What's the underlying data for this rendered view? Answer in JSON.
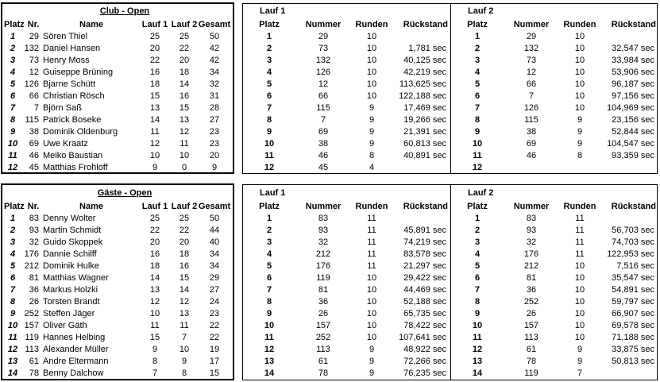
{
  "sections": [
    {
      "title": "Club - Open",
      "standings": {
        "columns": [
          "Platz",
          "Nr.",
          "Name",
          "Lauf 1",
          "Lauf 2",
          "Gesamt"
        ],
        "rows": [
          [
            "1",
            "29",
            "Sören Thiel",
            "25",
            "25",
            "50"
          ],
          [
            "2",
            "132",
            "Daniel Hansen",
            "20",
            "22",
            "42"
          ],
          [
            "3",
            "73",
            "Henry Moss",
            "22",
            "20",
            "42"
          ],
          [
            "4",
            "12",
            "Guiseppe Brüning",
            "16",
            "18",
            "34"
          ],
          [
            "5",
            "126",
            "Bjarne Schütt",
            "18",
            "14",
            "32"
          ],
          [
            "6",
            "66",
            "Christian Rösch",
            "15",
            "16",
            "31"
          ],
          [
            "7",
            "7",
            "Björn Saß",
            "13",
            "15",
            "28"
          ],
          [
            "8",
            "115",
            "Patrick Boseke",
            "14",
            "13",
            "27"
          ],
          [
            "9",
            "38",
            "Dominik Oldenburg",
            "11",
            "12",
            "23"
          ],
          [
            "10",
            "69",
            "Uwe Kraatz",
            "12",
            "11",
            "23"
          ],
          [
            "11",
            "46",
            "Meiko Baustian",
            "10",
            "10",
            "20"
          ],
          [
            "12",
            "45",
            "Matthias Frohloff",
            "9",
            "0",
            "9"
          ]
        ]
      },
      "runs": [
        {
          "title": "Lauf 1",
          "columns": [
            "Platz",
            "Nummer",
            "Runden",
            "Rückstand"
          ],
          "rows": [
            [
              "1",
              "29",
              "10"
            ],
            [
              "2",
              "73",
              "10",
              "1,781 sec"
            ],
            [
              "3",
              "132",
              "10",
              "40,125 sec"
            ],
            [
              "4",
              "126",
              "10",
              "42,219 sec"
            ],
            [
              "5",
              "12",
              "10",
              "113,625 sec"
            ],
            [
              "6",
              "66",
              "10",
              "122,188 sec"
            ],
            [
              "7",
              "115",
              "9",
              "17,469 sec"
            ],
            [
              "8",
              "7",
              "9",
              "19,266 sec"
            ],
            [
              "9",
              "69",
              "9",
              "21,391 sec"
            ],
            [
              "10",
              "38",
              "9",
              "60,813 sec"
            ],
            [
              "11",
              "46",
              "8",
              "40,891 sec"
            ],
            [
              "12",
              "45",
              "4"
            ]
          ]
        },
        {
          "title": "Lauf 2",
          "columns": [
            "Platz",
            "Nummer",
            "Runden",
            "Rückstand"
          ],
          "rows": [
            [
              "1",
              "29",
              "10"
            ],
            [
              "2",
              "132",
              "10",
              "32,547 sec"
            ],
            [
              "3",
              "73",
              "10",
              "33,984 sec"
            ],
            [
              "4",
              "12",
              "10",
              "53,906 sec"
            ],
            [
              "5",
              "66",
              "10",
              "96,187 sec"
            ],
            [
              "6",
              "7",
              "10",
              "97,156 sec"
            ],
            [
              "7",
              "126",
              "10",
              "104,969 sec"
            ],
            [
              "8",
              "115",
              "9",
              "23,156 sec"
            ],
            [
              "9",
              "38",
              "9",
              "52,844 sec"
            ],
            [
              "10",
              "69",
              "9",
              "104,547 sec"
            ],
            [
              "11",
              "46",
              "8",
              "93,359 sec"
            ],
            [
              "12"
            ]
          ]
        }
      ]
    },
    {
      "title": "Gäste - Open",
      "standings": {
        "columns": [
          "Platz",
          "Nr.",
          "Name",
          "Lauf 1",
          "Lauf 2",
          "Gesamt"
        ],
        "rows": [
          [
            "1",
            "83",
            "Denny Wolter",
            "25",
            "25",
            "50"
          ],
          [
            "2",
            "93",
            "Martin Schmidt",
            "22",
            "22",
            "44"
          ],
          [
            "3",
            "32",
            "Guido Skoppek",
            "20",
            "20",
            "40"
          ],
          [
            "4",
            "176",
            "Dannie Schilff",
            "16",
            "18",
            "34"
          ],
          [
            "5",
            "212",
            "Dominik Hulke",
            "18",
            "16",
            "34"
          ],
          [
            "6",
            "81",
            "Matthias Wagner",
            "14",
            "15",
            "29"
          ],
          [
            "7",
            "36",
            "Markus Holzki",
            "13",
            "14",
            "27"
          ],
          [
            "8",
            "26",
            "Torsten Brandt",
            "12",
            "12",
            "24"
          ],
          [
            "9",
            "252",
            "Steffen Jäger",
            "10",
            "13",
            "23"
          ],
          [
            "10",
            "157",
            "Oliver Gäth",
            "11",
            "11",
            "22"
          ],
          [
            "11",
            "119",
            "Hannes Helbing",
            "15",
            "7",
            "22"
          ],
          [
            "12",
            "113",
            "Alexander Müller",
            "9",
            "10",
            "19"
          ],
          [
            "13",
            "61",
            "Andre Eltermann",
            "8",
            "9",
            "17"
          ],
          [
            "14",
            "78",
            "Benny Dalchow",
            "7",
            "8",
            "15"
          ]
        ]
      },
      "runs": [
        {
          "title": "Lauf 1",
          "columns": [
            "Platz",
            "Nummer",
            "Runden",
            "Rückstand"
          ],
          "rows": [
            [
              "1",
              "83",
              "11"
            ],
            [
              "2",
              "93",
              "11",
              "45,891 sec"
            ],
            [
              "3",
              "32",
              "11",
              "74,219 sec"
            ],
            [
              "4",
              "212",
              "11",
              "83,578 sec"
            ],
            [
              "5",
              "176",
              "11",
              "21,297 sec"
            ],
            [
              "6",
              "119",
              "10",
              "29,422 sec"
            ],
            [
              "7",
              "81",
              "10",
              "44,469 sec"
            ],
            [
              "8",
              "36",
              "10",
              "52,188 sec"
            ],
            [
              "9",
              "26",
              "10",
              "65,735 sec"
            ],
            [
              "10",
              "157",
              "10",
              "78,422 sec"
            ],
            [
              "11",
              "252",
              "10",
              "107,641 sec"
            ],
            [
              "12",
              "113",
              "9",
              "48,922 sec"
            ],
            [
              "13",
              "61",
              "9",
              "72,266 sec"
            ],
            [
              "14",
              "78",
              "9",
              "76,235 sec"
            ]
          ]
        },
        {
          "title": "Lauf 2",
          "columns": [
            "Platz",
            "Nummer",
            "Runden",
            "Rückstand"
          ],
          "rows": [
            [
              "1",
              "83",
              "11"
            ],
            [
              "2",
              "93",
              "11",
              "56,703 sec"
            ],
            [
              "3",
              "32",
              "11",
              "74,703 sec"
            ],
            [
              "4",
              "176",
              "11",
              "122,953 sec"
            ],
            [
              "5",
              "212",
              "10",
              "7,516 sec"
            ],
            [
              "6",
              "81",
              "10",
              "35,547 sec"
            ],
            [
              "7",
              "36",
              "10",
              "54,891 sec"
            ],
            [
              "8",
              "252",
              "10",
              "59,797 sec"
            ],
            [
              "9",
              "26",
              "10",
              "66,907 sec"
            ],
            [
              "10",
              "157",
              "10",
              "69,578 sec"
            ],
            [
              "11",
              "113",
              "10",
              "71,188 sec"
            ],
            [
              "12",
              "61",
              "9",
              "33,875 sec"
            ],
            [
              "13",
              "78",
              "9",
              "50,813 sec"
            ],
            [
              "14",
              "119",
              "7"
            ]
          ]
        }
      ]
    }
  ]
}
